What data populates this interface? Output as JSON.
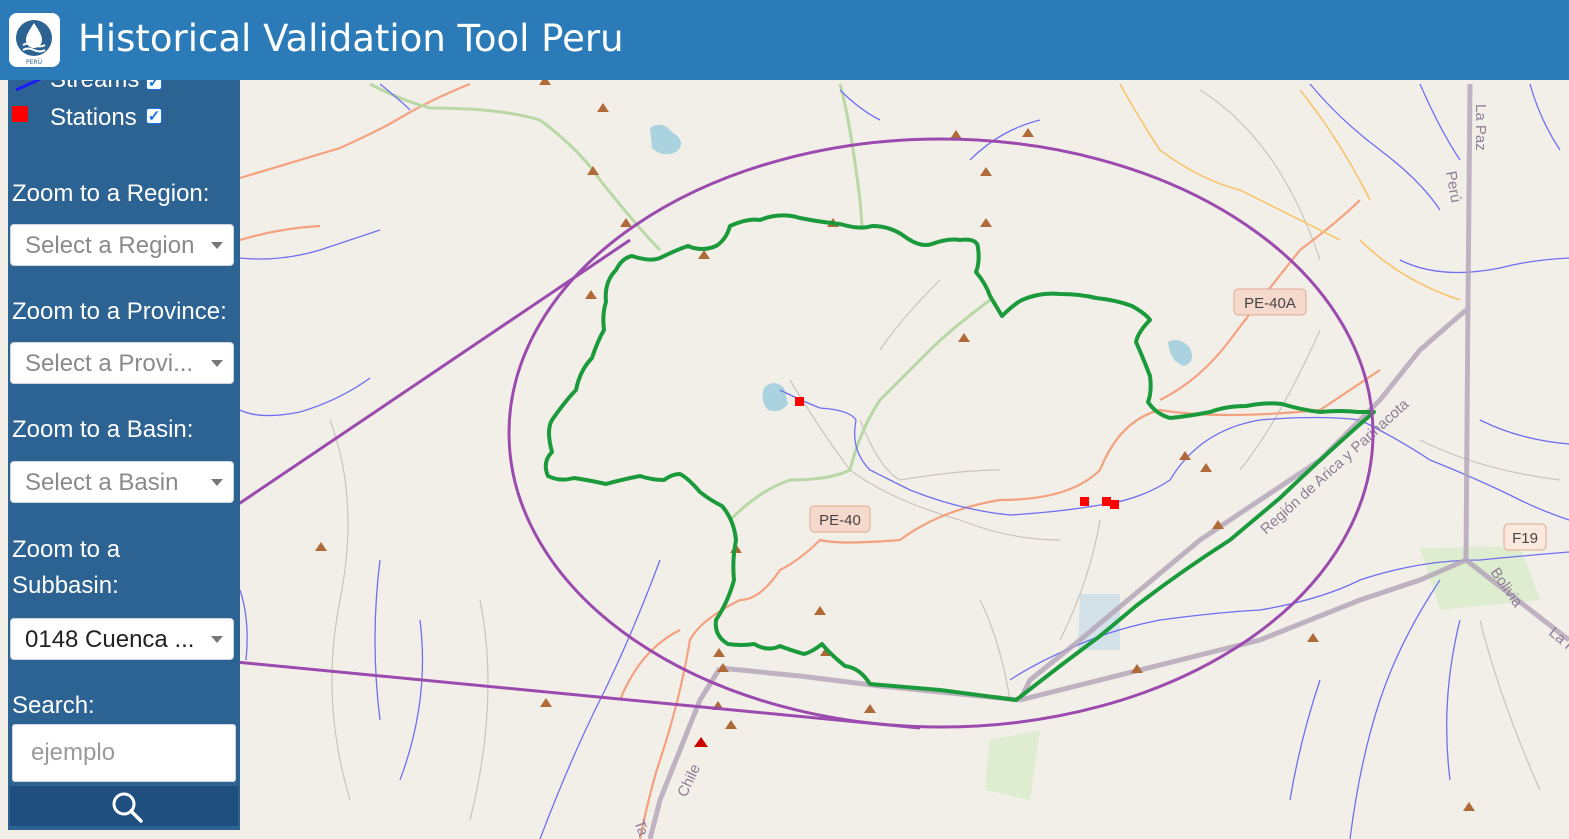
{
  "app": {
    "title": "Historical Validation Tool Peru",
    "logo_text": "PERÚ"
  },
  "layers": {
    "streams": {
      "label": "Streams",
      "checked": true,
      "color": "#1a1aff"
    },
    "stations": {
      "label": "Stations",
      "checked": true,
      "color": "#ff0000"
    }
  },
  "zoom": {
    "region": {
      "label": "Zoom to a Region:",
      "placeholder": "Select a Region"
    },
    "province": {
      "label": "Zoom to a Province:",
      "placeholder": "Select a Provi..."
    },
    "basin": {
      "label": "Zoom to a Basin:",
      "placeholder": "Select a Basin"
    },
    "subbasin": {
      "label": "Zoom to a Subbasin:",
      "value": "0148 Cuenca ..."
    }
  },
  "search": {
    "label": "Search:",
    "placeholder": "ejemplo",
    "icon": "search-icon"
  },
  "map": {
    "road_labels": [
      "PE-40A",
      "PE-40",
      "F19"
    ],
    "region_labels": [
      "La Paz",
      "Perú",
      "Región de Arica y Parinacota",
      "Bolivia",
      "La P",
      "Chile",
      "Ta"
    ]
  },
  "colors": {
    "header": "#2b7bb9",
    "sidebar": "#2d6393",
    "basin_outline": "#1b9a3c",
    "annotation": "#9b4aad",
    "station": "#ff0000"
  }
}
